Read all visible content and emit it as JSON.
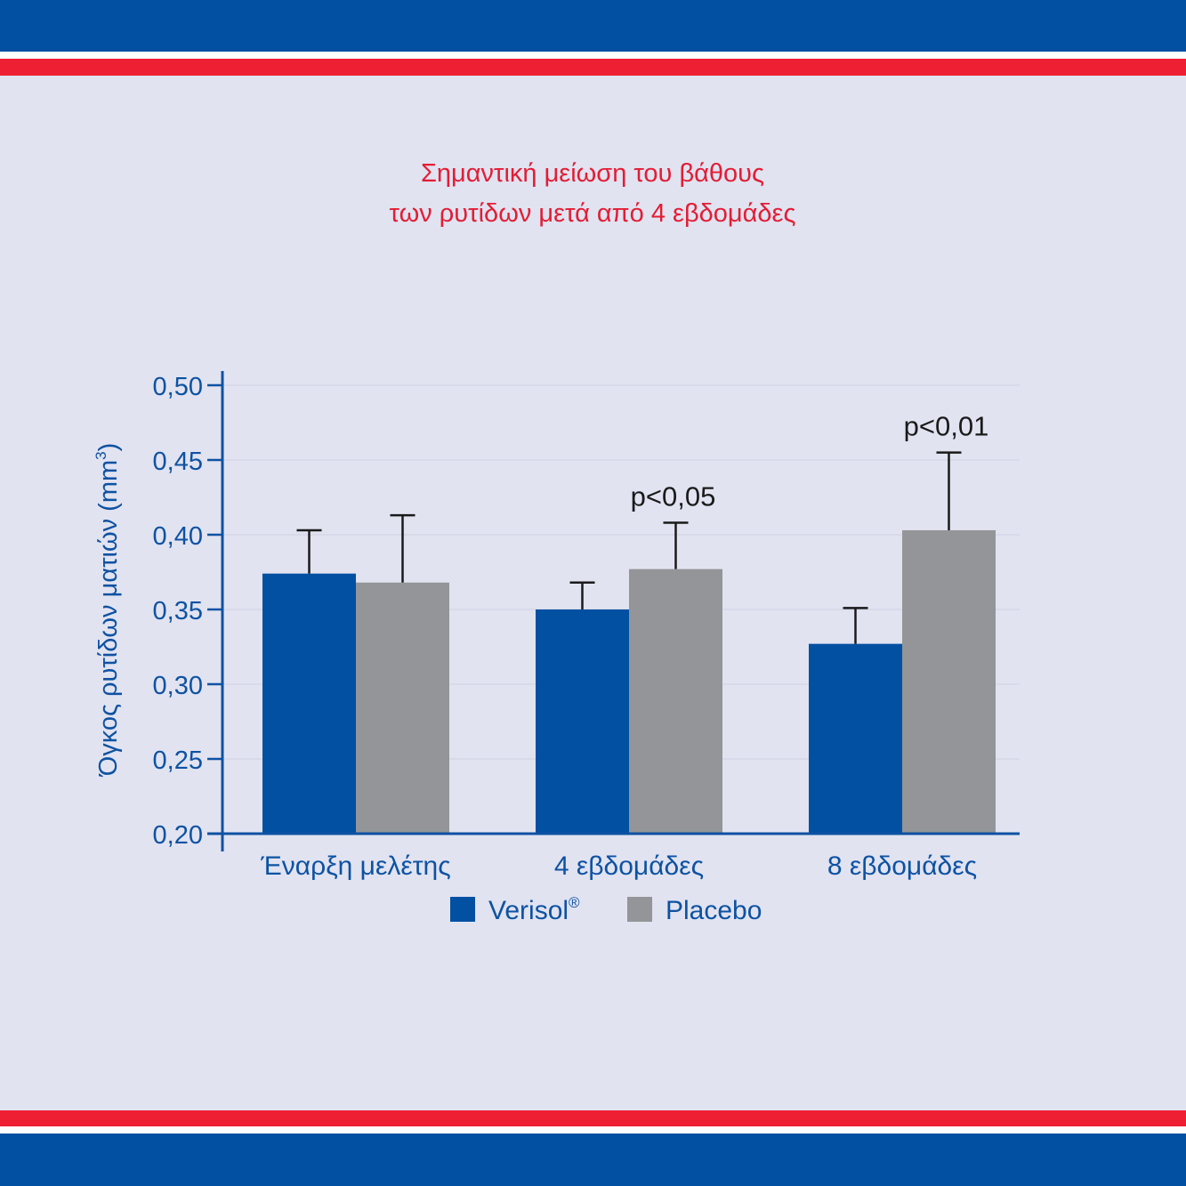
{
  "colors": {
    "background": "#e1e3f1",
    "band_blue": "#0150a2",
    "band_red": "#ee1f33",
    "band_white": "#ffffff",
    "verisol": "#0150a2",
    "placebo": "#939598",
    "axis": "#0e52a2",
    "title": "#e31d34",
    "annotation": "#1a1a1a",
    "grid": "#cfd2e4"
  },
  "chart_data": {
    "type": "bar",
    "title": [
      "Σημαντική μείωση του βάθους",
      "των ρυτίδων μετά από 4 εβδομάδες"
    ],
    "ylabel": "Όγκος ρυτίδων ματιών (mm",
    "ylabel_superscript": "3",
    "ylabel_suffix": ")",
    "ylim": [
      0.2,
      0.5
    ],
    "yticks": [
      0.2,
      0.25,
      0.3,
      0.35,
      0.4,
      0.45,
      0.5
    ],
    "ytick_labels": [
      "0,20",
      "0,25",
      "0,30",
      "0,35",
      "0,40",
      "0,45",
      "0,50"
    ],
    "grid": true,
    "categories": [
      "Έναρξη μελέτης",
      "4 εβδομάδες",
      "8 εβδομάδες"
    ],
    "series": [
      {
        "name": "Verisol",
        "name_mark": "®",
        "color": "#0150a2",
        "values": [
          0.374,
          0.35,
          0.327
        ],
        "error_upper": [
          0.403,
          0.368,
          0.351
        ]
      },
      {
        "name": "Placebo",
        "name_mark": "",
        "color": "#939598",
        "values": [
          0.368,
          0.377,
          0.403
        ],
        "error_upper": [
          0.413,
          0.408,
          0.455
        ]
      }
    ],
    "annotations": [
      {
        "category_index": 1,
        "series_index": 1,
        "text": "p<0,05"
      },
      {
        "category_index": 2,
        "series_index": 1,
        "text": "p<0,01"
      }
    ],
    "legend_placement": "bottom-center"
  }
}
